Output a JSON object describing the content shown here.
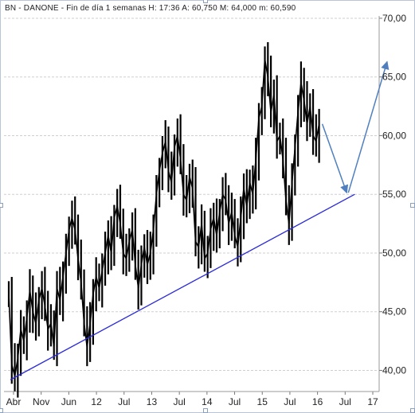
{
  "header": {
    "title": "BN - DANONE - Fin de día 1 semanas  H: 17:36  A: 60,750  M: 64,000  m: 60,590"
  },
  "colors": {
    "price": "#000000",
    "support_line": "#2b2bd6",
    "projection_arrow": "#4f7fbf",
    "grid": "#cfcfcf",
    "frame": "#b9c4d6"
  },
  "chart_data": {
    "type": "line",
    "title": "BN - DANONE - Fin de día 1 semanas  H: 17:36  A: 60,750  M: 64,000  m: 60,590",
    "xlabel": "",
    "ylabel": "",
    "y_ticks": [
      "40,00",
      "45,00",
      "50,00",
      "55,00",
      "60,00",
      "65,00",
      "70,00"
    ],
    "x_ticks": [
      "Abr",
      "Nov",
      "Jun",
      "12",
      "Jul",
      "13",
      "Jul",
      "14",
      "Jul",
      "15",
      "Jul",
      "16",
      "Jul",
      "17"
    ],
    "ylim": [
      38.2,
      70.2
    ],
    "grid": true,
    "series": [
      {
        "kind": "price-bars",
        "values": [
          46.5,
          40.5,
          39.5,
          41.0,
          43.5,
          42.5,
          44.5,
          46.8,
          45.0,
          44.0,
          46.0,
          47.0,
          45.5,
          43.5,
          44.0,
          42.0,
          47.0,
          46.0,
          48.0,
          50.0,
          52.0,
          53.0,
          52.0,
          49.5,
          47.5,
          44.0,
          42.0,
          44.0,
          46.5,
          48.0,
          47.0,
          48.5,
          50.0,
          51.5,
          50.0,
          53.0,
          54.0,
          52.5,
          50.0,
          49.5,
          51.0,
          52.0,
          49.0,
          47.0,
          49.0,
          50.5,
          49.0,
          50.0,
          52.0,
          55.0,
          57.0,
          58.5,
          59.5,
          57.0,
          56.0,
          59.0,
          60.0,
          58.0,
          55.0,
          54.5,
          56.5,
          55.5,
          51.0,
          50.5,
          52.5,
          49.5,
          50.0,
          52.0,
          53.0,
          51.5,
          53.5,
          55.0,
          54.5,
          52.5,
          53.5,
          51.5,
          50.5,
          53.0,
          55.5,
          54.0,
          56.0,
          55.0,
          58.0,
          61.5,
          62.5,
          66.5,
          65.0,
          62.0,
          63.5,
          59.5,
          60.0,
          58.0,
          54.5,
          52.5,
          56.0,
          59.0,
          62.0,
          64.5,
          63.0,
          61.0,
          62.5,
          60.0,
          59.5,
          61.0
        ],
        "range": [
          37.5,
          66.8
        ]
      },
      {
        "kind": "support-trendline",
        "x": [
          "Abr",
          "17"
        ],
        "values": [
          39.2,
          55.0
        ]
      },
      {
        "kind": "projection-arrow",
        "x": [
          "16",
          "Jul",
          "17"
        ],
        "values": [
          61.0,
          55.0,
          66.3
        ]
      }
    ]
  }
}
